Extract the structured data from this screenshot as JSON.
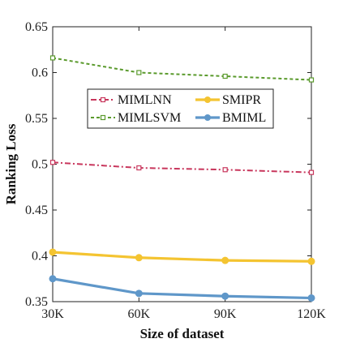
{
  "chart_data": {
    "type": "line",
    "title": "",
    "xlabel": "Size of dataset",
    "ylabel": "Ranking Loss",
    "categories": [
      "30K",
      "60K",
      "90K",
      "120K"
    ],
    "ylim": [
      0.35,
      0.65
    ],
    "yticks": [
      "0.35",
      "0.4",
      "0.45",
      "0.5",
      "0.55",
      "0.6",
      "0.65"
    ],
    "grid": false,
    "legend_position": "upper-middle",
    "series": [
      {
        "name": "MIMLNN",
        "values": [
          0.502,
          0.496,
          0.494,
          0.491
        ],
        "color": "#c8365c",
        "dash": "7,3,2,3",
        "marker": "square"
      },
      {
        "name": "MIMLSVM",
        "values": [
          0.616,
          0.6,
          0.596,
          0.592
        ],
        "color": "#5a9a2c",
        "dash": "4,3",
        "marker": "square"
      },
      {
        "name": "SMIPR",
        "values": [
          0.404,
          0.398,
          0.395,
          0.394
        ],
        "color": "#f4c431",
        "dash": "",
        "marker": "circle"
      },
      {
        "name": "BMIML",
        "values": [
          0.375,
          0.359,
          0.356,
          0.354
        ],
        "color": "#5f97c9",
        "dash": "",
        "marker": "circle"
      }
    ]
  }
}
